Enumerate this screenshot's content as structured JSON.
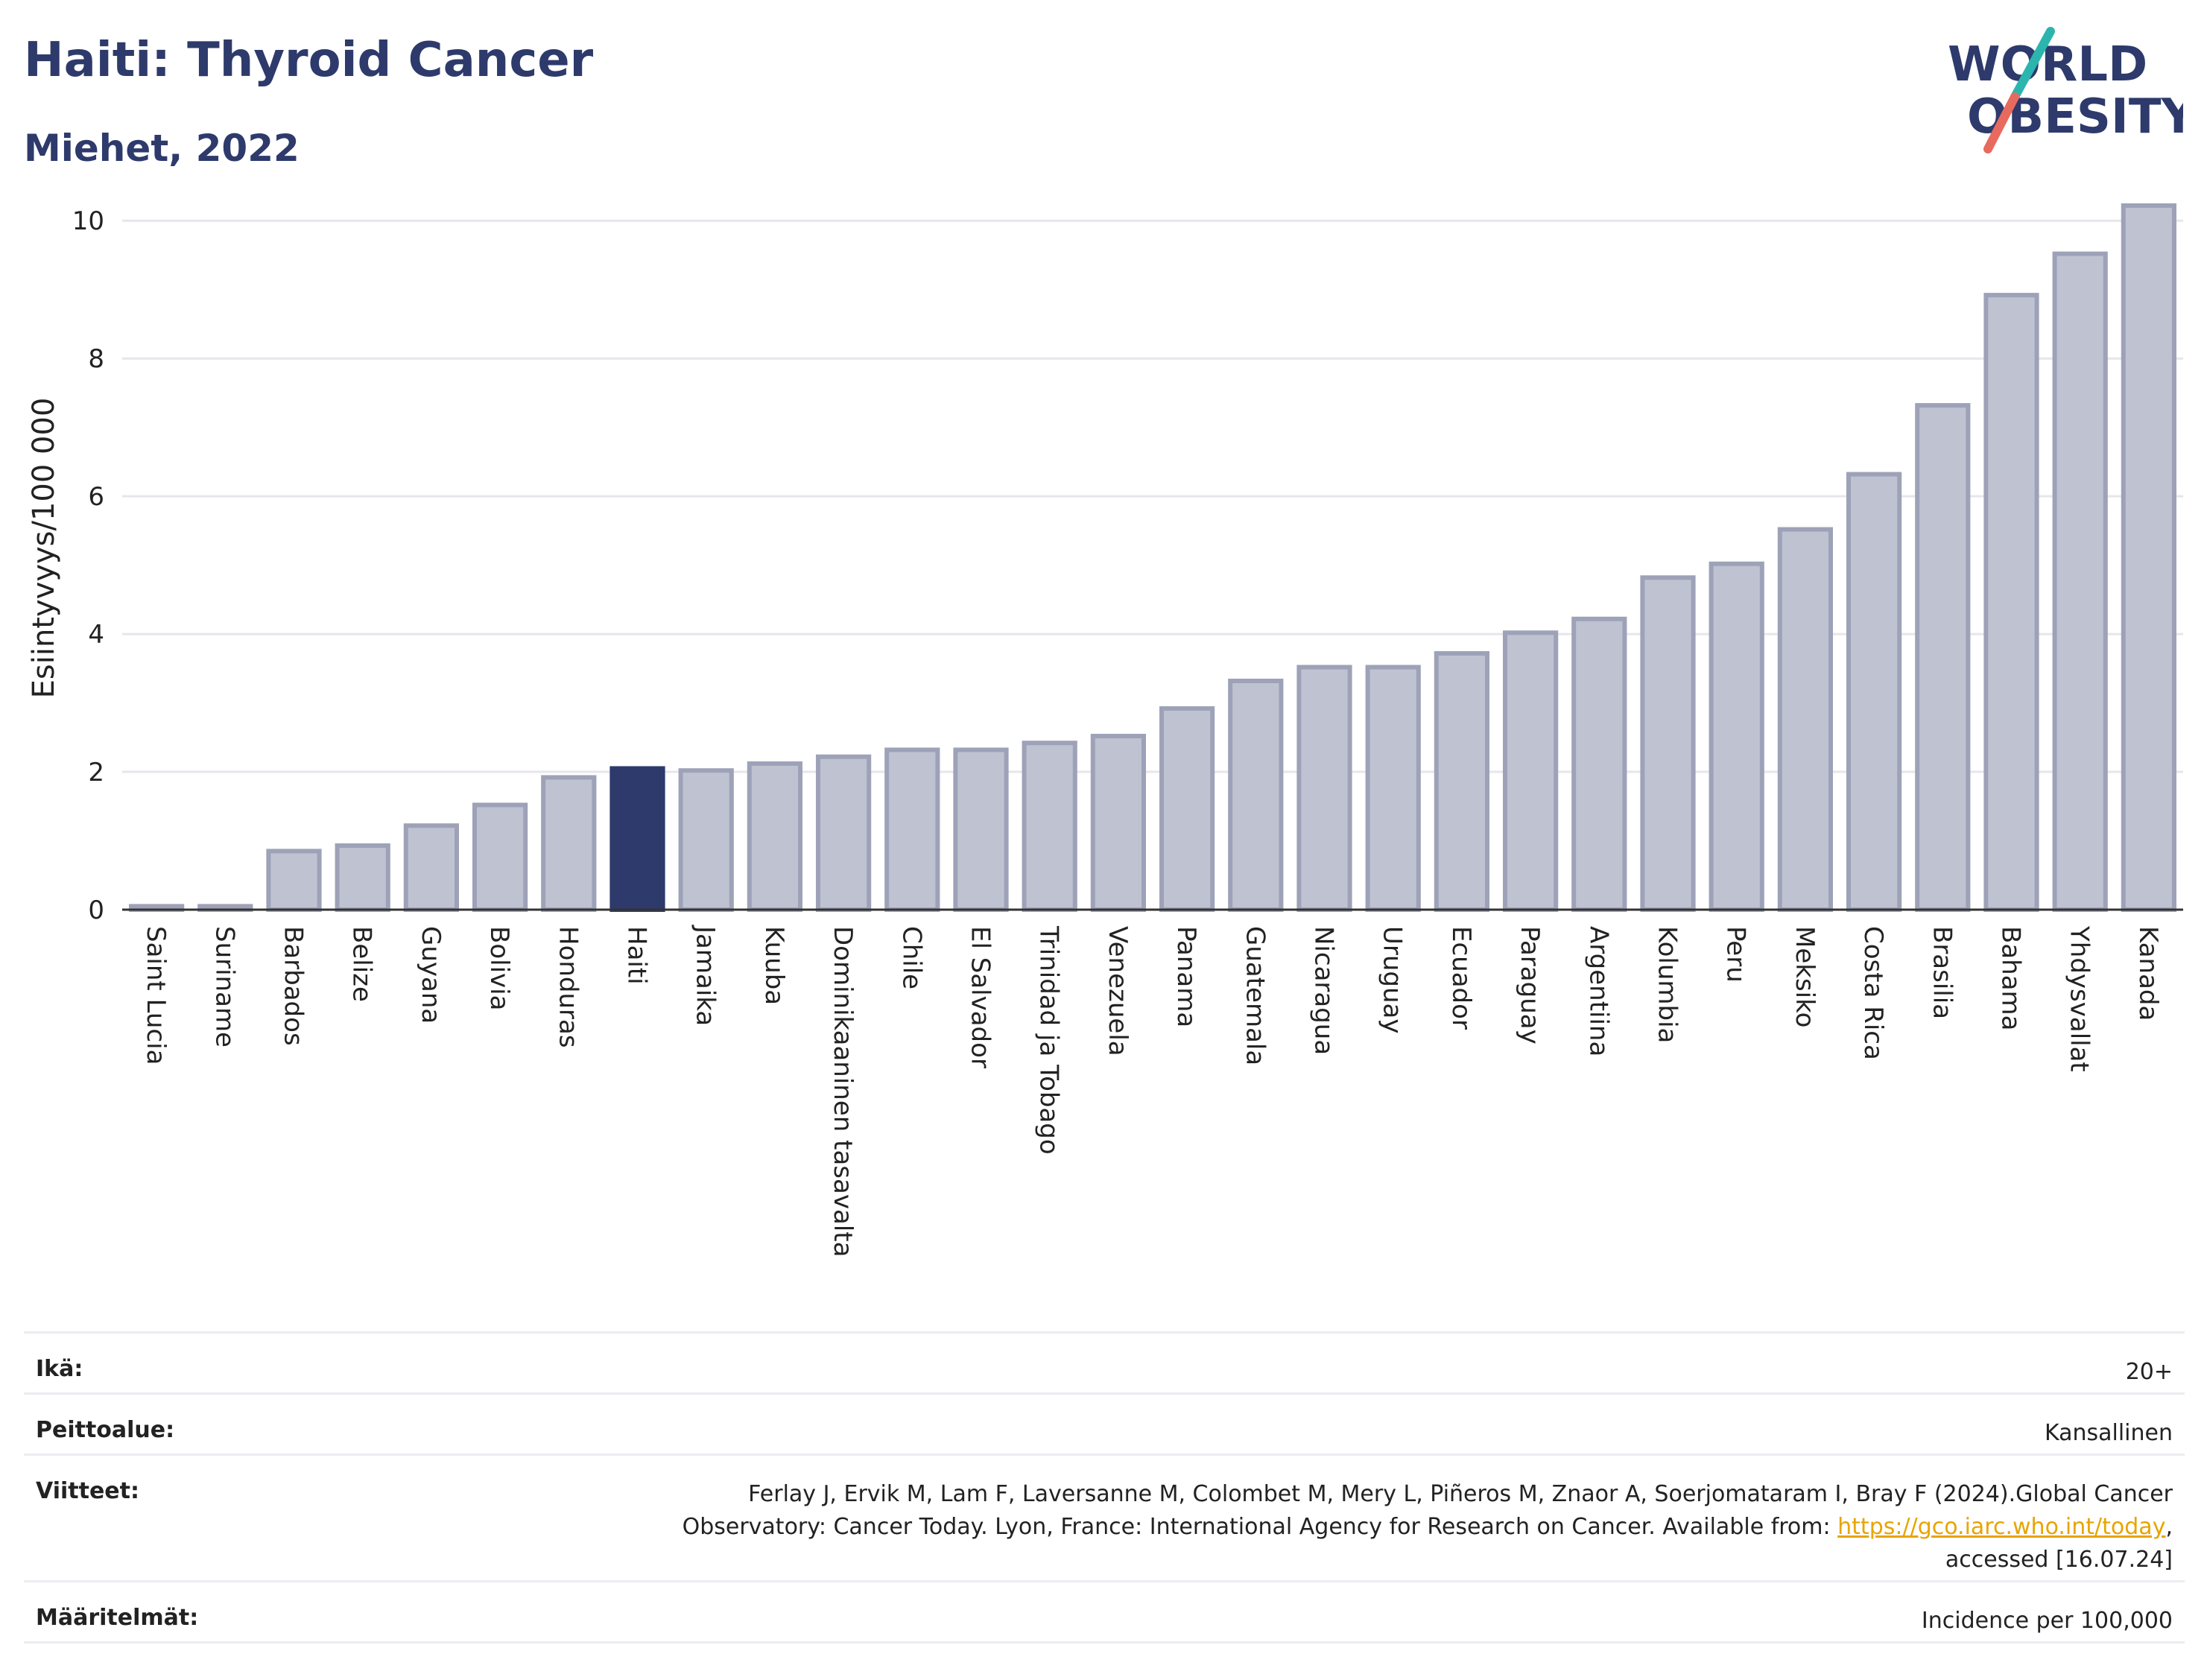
{
  "header": {
    "title": "Haiti: Thyroid Cancer",
    "subtitle": "Miehet, 2022"
  },
  "logo": {
    "line1": "WORLD",
    "line2": "OBESITY",
    "colors": {
      "text": "#2d3a6b",
      "slash_top": "#2bb5ae",
      "slash_bottom": "#e86a5e"
    }
  },
  "chart_data": {
    "type": "bar",
    "ylabel": "Esiintyvyys/100 000",
    "xlabel": "",
    "ylim": [
      0,
      10.5
    ],
    "yticks": [
      0,
      2,
      4,
      6,
      8,
      10
    ],
    "grid": true,
    "highlight": "Haiti",
    "colors": {
      "bar": "#bfc2d1",
      "bar_edge": "#9ea2b8",
      "highlight": "#2d3a6b",
      "grid": "#e6e6ec",
      "axis": "#333333"
    },
    "categories": [
      "Saint Lucia",
      "Suriname",
      "Barbados",
      "Belize",
      "Guyana",
      "Bolivia",
      "Honduras",
      "Haiti",
      "Jamaika",
      "Kuuba",
      "Dominikaaninen tasavalta",
      "Chile",
      "El Salvador",
      "Trinidad ja Tobago",
      "Venezuela",
      "Panama",
      "Guatemala",
      "Nicaragua",
      "Uruguay",
      "Ecuador",
      "Paraguay",
      "Argentiina",
      "Kolumbia",
      "Peru",
      "Meksiko",
      "Costa Rica",
      "Brasilia",
      "Bahama",
      "Yhdysvallat",
      "Kanada"
    ],
    "values": [
      0.05,
      0.05,
      0.85,
      0.93,
      1.22,
      1.52,
      1.92,
      2.05,
      2.02,
      2.12,
      2.22,
      2.32,
      2.32,
      2.42,
      2.52,
      2.92,
      3.32,
      3.52,
      3.52,
      3.72,
      4.02,
      4.22,
      4.82,
      5.02,
      5.52,
      6.32,
      7.32,
      8.92,
      9.52,
      10.22
    ]
  },
  "meta": [
    {
      "key": "Ikä:",
      "value": "20+"
    },
    {
      "key": "Peittoalue:",
      "value": "Kansallinen"
    },
    {
      "key": "Viitteet:",
      "value_pre": "Ferlay J, Ervik M, Lam F, Laversanne M, Colombet M, Mery L, Piñeros M, Znaor A, Soerjomataram I, Bray F (2024).Global Cancer Observatory: Cancer Today. Lyon, France: International Agency for Research on Cancer. Available from: ",
      "link": "https://gco.iarc.who.int/today",
      "value_post": ", accessed [16.07.24]"
    },
    {
      "key": "Määritelmät:",
      "value": "Incidence per 100,000"
    }
  ]
}
